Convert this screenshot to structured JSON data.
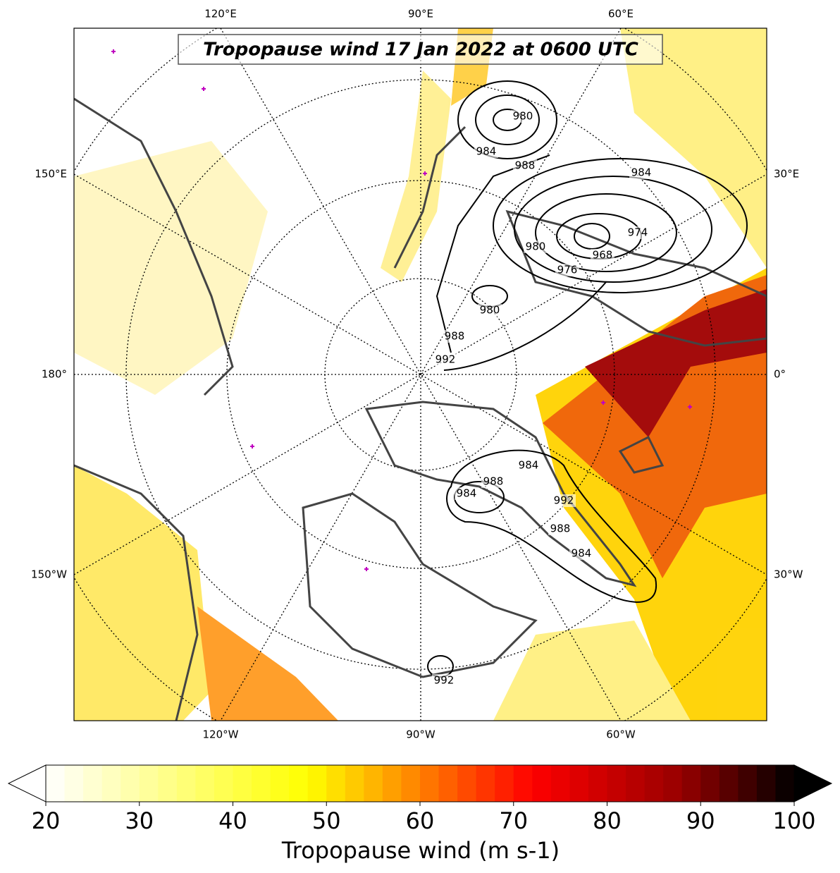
{
  "title": "Tropopause wind 17 Jan 2022 at 0600 UTC",
  "longitude_labels": {
    "top": [
      "120°E",
      "90°E",
      "60°E"
    ],
    "bottom": [
      "120°W",
      "90°W",
      "60°W"
    ],
    "left": [
      "150°E",
      "180°",
      "150°W"
    ],
    "right": [
      "30°E",
      "0°",
      "30°W"
    ]
  },
  "contour_labels": [
    980,
    984,
    988,
    984,
    976,
    968,
    974,
    980,
    980,
    988,
    992,
    984,
    988,
    984,
    992,
    988,
    984,
    992
  ],
  "colorbar": {
    "label": "Tropopause wind (m s-1)",
    "lim": [
      20,
      100
    ],
    "ticks": [
      20,
      30,
      40,
      50,
      60,
      70,
      80,
      90,
      100
    ]
  }
}
